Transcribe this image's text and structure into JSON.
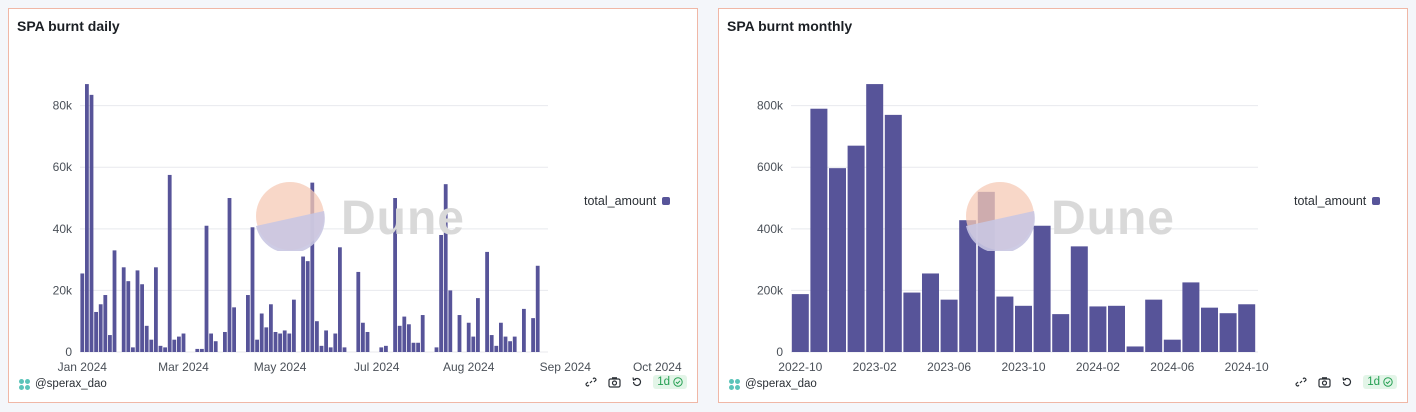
{
  "colors": {
    "bar": "#575499",
    "grid": "#e8e9ee",
    "border": "#f0b7a6"
  },
  "watermark": {
    "text": "Dune"
  },
  "panels": {
    "daily": {
      "title": "SPA burnt daily",
      "legend": "total_amount",
      "author": "@sperax_dao",
      "refresh": "1d"
    },
    "monthly": {
      "title": "SPA burnt monthly",
      "legend": "total_amount",
      "author": "@sperax_dao",
      "refresh": "1d"
    }
  },
  "chart_data": [
    {
      "type": "bar",
      "title": "SPA burnt daily",
      "series": [
        {
          "name": "total_amount"
        }
      ],
      "ylim": [
        0,
        88000
      ],
      "yticks": [
        0,
        20000,
        40000,
        60000,
        80000
      ],
      "ytick_labels": [
        "0",
        "20k",
        "40k",
        "60k",
        "80k"
      ],
      "xtick_labels": [
        "Jan 2024",
        "Mar 2024",
        "May 2024",
        "Jul 2024",
        "Aug 2024",
        "Sep 2024",
        "Oct 2024"
      ],
      "xtick_index": [
        0,
        22,
        43,
        64,
        84,
        105,
        125
      ],
      "values": [
        25500,
        87000,
        83500,
        13000,
        15500,
        18500,
        5500,
        33000,
        0,
        27500,
        23000,
        1500,
        26500,
        22000,
        8500,
        4000,
        27500,
        2000,
        1500,
        57500,
        4000,
        5000,
        6000,
        0,
        0,
        1000,
        1000,
        41000,
        6000,
        3500,
        0,
        6500,
        50000,
        14500,
        0,
        0,
        18500,
        40500,
        4000,
        12500,
        8000,
        15500,
        6500,
        6000,
        7000,
        6000,
        17000,
        0,
        31000,
        29500,
        55000,
        10000,
        2000,
        7000,
        1500,
        6000,
        34000,
        1500,
        0,
        0,
        26000,
        9500,
        6500,
        0,
        0,
        1500,
        2000,
        0,
        50000,
        8500,
        11500,
        9000,
        3000,
        3000,
        12000,
        0,
        0,
        1500,
        38000,
        54500,
        20000,
        0,
        12000,
        0,
        9500,
        5000,
        17500,
        0,
        32500,
        5500,
        2000,
        9500,
        5000,
        3500,
        5000,
        0,
        14000,
        0,
        11000,
        28000
      ],
      "xstart_index": 0
    },
    {
      "type": "bar",
      "title": "SPA burnt monthly",
      "series": [
        {
          "name": "total_amount"
        }
      ],
      "ylim": [
        0,
        880000
      ],
      "yticks": [
        0,
        200000,
        400000,
        600000,
        800000
      ],
      "ytick_labels": [
        "0",
        "200k",
        "400k",
        "600k",
        "800k"
      ],
      "categories": [
        "2022-10",
        "2022-11",
        "2022-12",
        "2023-01",
        "2023-02",
        "2023-03",
        "2023-04",
        "2023-05",
        "2023-06",
        "2023-07",
        "2023-08",
        "2023-09",
        "2023-10",
        "2023-11",
        "2023-12",
        "2024-01",
        "2024-02",
        "2024-03",
        "2024-04",
        "2024-05",
        "2024-06",
        "2024-07",
        "2024-08",
        "2024-09",
        "2024-10"
      ],
      "values": [
        188000,
        790000,
        597000,
        670000,
        870000,
        770000,
        193000,
        255000,
        170000,
        428000,
        520000,
        180000,
        150000,
        410000,
        123000,
        343000,
        148000,
        150000,
        18000,
        170000,
        40000,
        226000,
        144000,
        126000,
        155000
      ],
      "xtick_labels": [
        "2022-10",
        "2023-02",
        "2023-06",
        "2023-10",
        "2024-02",
        "2024-06",
        "2024-10"
      ],
      "xtick_index": [
        0,
        4,
        8,
        12,
        16,
        20,
        24
      ]
    }
  ]
}
